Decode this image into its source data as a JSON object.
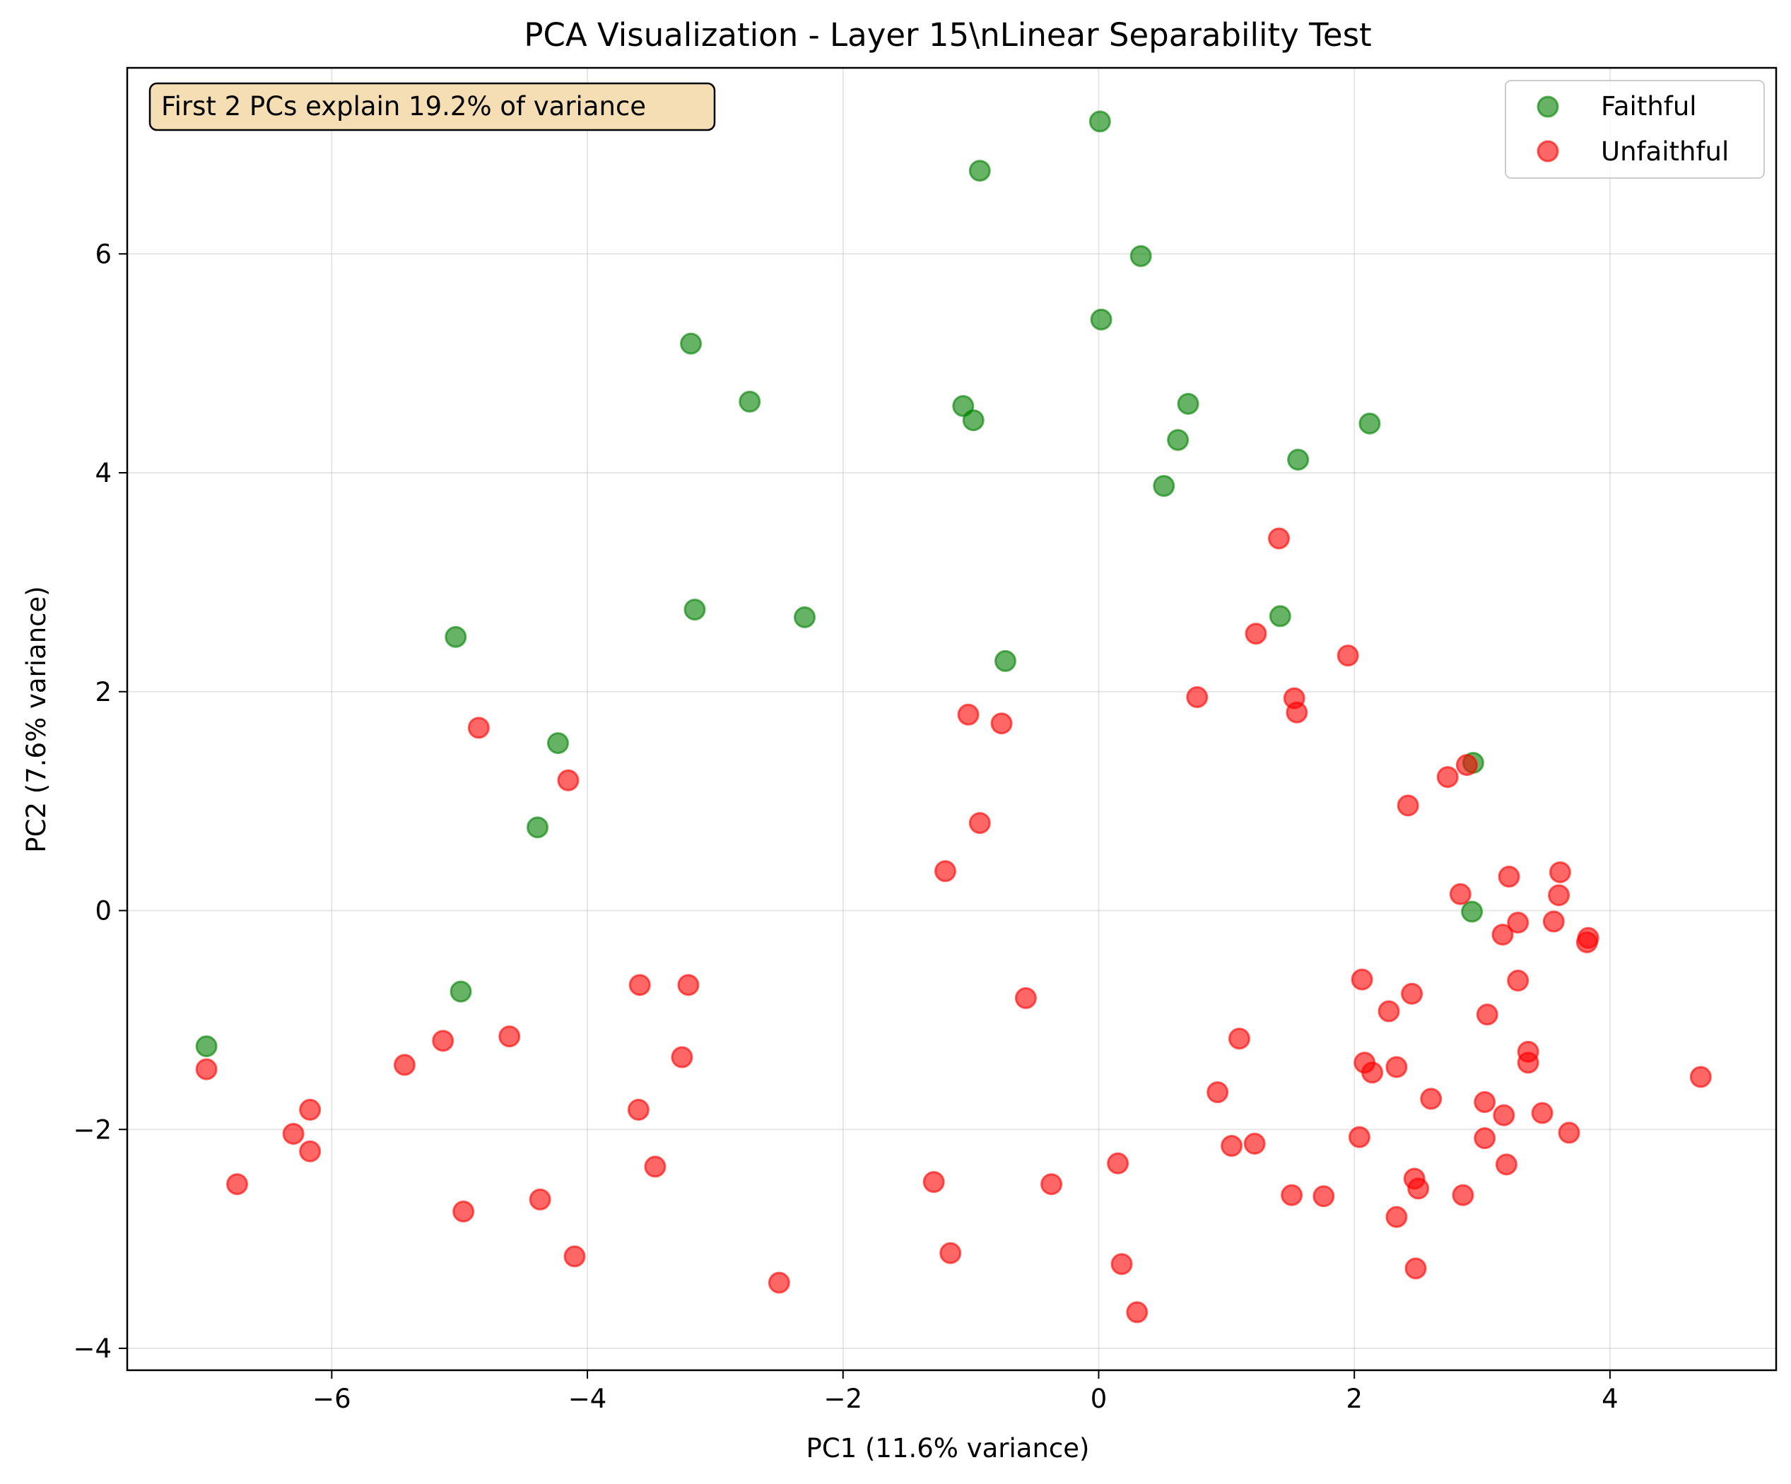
{
  "chart_data": {
    "type": "scatter",
    "title": "PCA Visualization - Layer 15\\nLinear Separability Test",
    "xlabel": "PC1 (11.6% variance)",
    "ylabel": "PC2 (7.6% variance)",
    "xlim": [
      -7.6,
      5.3
    ],
    "ylim": [
      -4.2,
      7.7
    ],
    "xticks": [
      -6,
      -4,
      -2,
      0,
      2,
      4
    ],
    "yticks": [
      -4,
      -2,
      0,
      2,
      4,
      6
    ],
    "xtick_labels": [
      "−6",
      "−4",
      "−2",
      "0",
      "2",
      "4"
    ],
    "ytick_labels": [
      "−4",
      "−2",
      "0",
      "2",
      "4",
      "6"
    ],
    "grid": true,
    "legend_position": "top-right",
    "annotation": "First 2 PCs explain 19.2% of variance",
    "series": [
      {
        "name": "Faithful",
        "color": "#008000",
        "points": [
          [
            0.01,
            7.21
          ],
          [
            -0.93,
            6.76
          ],
          [
            0.33,
            5.98
          ],
          [
            0.02,
            5.4
          ],
          [
            -3.19,
            5.18
          ],
          [
            -2.73,
            4.65
          ],
          [
            -1.06,
            4.61
          ],
          [
            0.7,
            4.63
          ],
          [
            -0.98,
            4.48
          ],
          [
            2.12,
            4.45
          ],
          [
            0.62,
            4.3
          ],
          [
            1.56,
            4.12
          ],
          [
            0.51,
            3.88
          ],
          [
            1.42,
            2.69
          ],
          [
            -3.16,
            2.75
          ],
          [
            -2.3,
            2.68
          ],
          [
            -0.73,
            2.28
          ],
          [
            -5.03,
            2.5
          ],
          [
            -4.23,
            1.53
          ],
          [
            -4.39,
            0.76
          ],
          [
            2.93,
            1.35
          ],
          [
            2.92,
            -0.01
          ],
          [
            -4.99,
            -0.74
          ],
          [
            -6.98,
            -1.24
          ]
        ]
      },
      {
        "name": "Unfaithful",
        "color": "#ff0000",
        "points": [
          [
            1.41,
            3.4
          ],
          [
            1.23,
            2.53
          ],
          [
            1.95,
            2.33
          ],
          [
            0.77,
            1.95
          ],
          [
            1.53,
            1.94
          ],
          [
            1.55,
            1.81
          ],
          [
            -1.02,
            1.79
          ],
          [
            -0.76,
            1.71
          ],
          [
            -4.85,
            1.67
          ],
          [
            -4.15,
            1.19
          ],
          [
            2.88,
            1.33
          ],
          [
            2.73,
            1.22
          ],
          [
            2.42,
            0.96
          ],
          [
            -0.93,
            0.8
          ],
          [
            -1.2,
            0.36
          ],
          [
            3.61,
            0.35
          ],
          [
            3.21,
            0.31
          ],
          [
            2.83,
            0.15
          ],
          [
            3.6,
            0.14
          ],
          [
            3.56,
            -0.1
          ],
          [
            3.28,
            -0.11
          ],
          [
            3.16,
            -0.22
          ],
          [
            3.83,
            -0.25
          ],
          [
            3.82,
            -0.29
          ],
          [
            2.06,
            -0.63
          ],
          [
            3.28,
            -0.64
          ],
          [
            2.45,
            -0.76
          ],
          [
            -3.59,
            -0.68
          ],
          [
            -3.21,
            -0.68
          ],
          [
            -0.57,
            -0.8
          ],
          [
            2.27,
            -0.92
          ],
          [
            3.04,
            -0.95
          ],
          [
            -4.61,
            -1.15
          ],
          [
            -5.13,
            -1.19
          ],
          [
            1.1,
            -1.17
          ],
          [
            3.36,
            -1.29
          ],
          [
            -3.26,
            -1.34
          ],
          [
            -5.43,
            -1.41
          ],
          [
            2.08,
            -1.39
          ],
          [
            3.36,
            -1.39
          ],
          [
            2.33,
            -1.43
          ],
          [
            -6.98,
            -1.45
          ],
          [
            2.14,
            -1.48
          ],
          [
            4.71,
            -1.52
          ],
          [
            0.93,
            -1.66
          ],
          [
            2.6,
            -1.72
          ],
          [
            3.02,
            -1.75
          ],
          [
            -3.6,
            -1.82
          ],
          [
            -6.17,
            -1.82
          ],
          [
            3.47,
            -1.85
          ],
          [
            3.17,
            -1.87
          ],
          [
            -6.3,
            -2.04
          ],
          [
            3.68,
            -2.03
          ],
          [
            2.04,
            -2.07
          ],
          [
            3.02,
            -2.08
          ],
          [
            1.04,
            -2.15
          ],
          [
            1.22,
            -2.13
          ],
          [
            -6.17,
            -2.2
          ],
          [
            3.19,
            -2.32
          ],
          [
            0.15,
            -2.31
          ],
          [
            -3.47,
            -2.34
          ],
          [
            -1.29,
            -2.48
          ],
          [
            -0.37,
            -2.5
          ],
          [
            -6.74,
            -2.5
          ],
          [
            2.47,
            -2.45
          ],
          [
            2.5,
            -2.54
          ],
          [
            1.51,
            -2.6
          ],
          [
            1.76,
            -2.61
          ],
          [
            2.85,
            -2.6
          ],
          [
            -4.37,
            -2.64
          ],
          [
            -4.97,
            -2.75
          ],
          [
            2.33,
            -2.8
          ],
          [
            -1.16,
            -3.13
          ],
          [
            -4.1,
            -3.16
          ],
          [
            0.18,
            -3.23
          ],
          [
            2.48,
            -3.27
          ],
          [
            -2.5,
            -3.4
          ],
          [
            0.3,
            -3.67
          ]
        ]
      }
    ]
  }
}
